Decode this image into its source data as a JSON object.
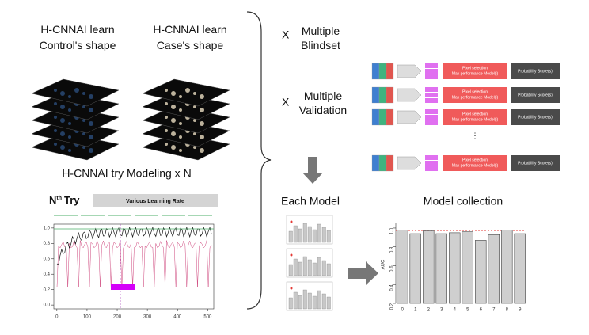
{
  "left": {
    "control": [
      "H-CNNAI learn",
      "Control's shape"
    ],
    "case": [
      "H-CNNAI learn",
      "Case's shape"
    ],
    "modeling": "H-CNNAI try Modeling x N"
  },
  "try_chart": {
    "title_n": "N",
    "title_sup": "th",
    "title_rest": "Try",
    "legend": "Various Learning Rate",
    "xlim": [
      -10,
      520
    ],
    "xticks": [
      0,
      100,
      200,
      300,
      400,
      500
    ],
    "ylim": [
      -0.05,
      1.05
    ],
    "yticks": [
      {
        "value": 0,
        "label": "0.0"
      },
      {
        "value": 0.2,
        "label": "0.2"
      },
      {
        "value": 0.4,
        "label": "0.4"
      },
      {
        "value": 0.6,
        "label": "0.6"
      },
      {
        "value": 0.8,
        "label": "0.8"
      },
      {
        "value": 1,
        "label": "1.0"
      }
    ]
  },
  "steps": [
    {
      "x": "X",
      "label": [
        "Multiple",
        "Blindset"
      ]
    },
    {
      "x": "X",
      "label": [
        "Multiple",
        "Validation"
      ]
    }
  ],
  "pipeline": {
    "select": [
      "Pixel selection",
      "Max performance Model(i)"
    ],
    "score": "Probability Score(s)"
  },
  "each_model": "Each Model",
  "collection": {
    "title": "Model collection",
    "ylabel": "AUC",
    "categories": [
      "0",
      "1",
      "2",
      "3",
      "4",
      "5",
      "6",
      "7",
      "8",
      "9"
    ],
    "values": [
      0.98,
      0.94,
      0.97,
      0.94,
      0.95,
      0.96,
      0.87,
      0.93,
      0.98,
      0.94
    ],
    "ylim": [
      0.2,
      1.05
    ],
    "yticks": [
      {
        "value": 0.2,
        "label": "0.2"
      },
      {
        "value": 0.4,
        "label": "0.4"
      },
      {
        "value": 0.6,
        "label": "0.6"
      },
      {
        "value": 0.8,
        "label": "0.8"
      },
      {
        "value": 1,
        "label": "1.0"
      }
    ]
  }
}
